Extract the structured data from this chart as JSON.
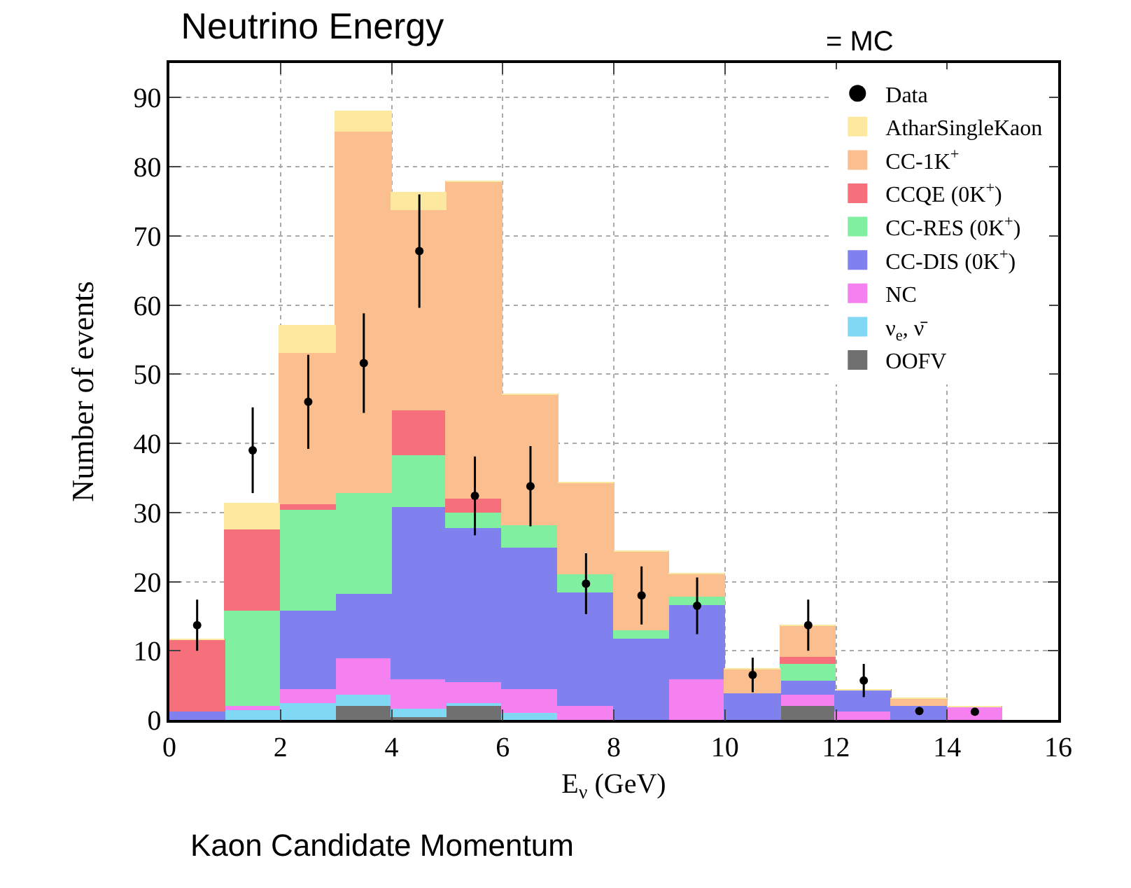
{
  "chart_data": {
    "type": "bar",
    "title": "Neutrino Energy",
    "xlabel": "E$_{ν}$ (GeV)",
    "ylabel": "Number of events",
    "x": [
      0.5,
      1.5,
      2.5,
      3.5,
      4.5,
      5.5,
      6.5,
      7.5,
      8.5,
      9.5,
      10.5,
      11.5,
      12.5,
      13.5,
      14.5
    ],
    "stacked": true,
    "xlim": [
      0,
      16
    ],
    "ylim": [
      0,
      95
    ],
    "xticks": [
      0,
      2,
      4,
      6,
      8,
      10,
      12,
      14,
      16
    ],
    "yticks": [
      0,
      10,
      20,
      30,
      40,
      50,
      60,
      70,
      80,
      90
    ],
    "grid": true,
    "legend": "top right",
    "marker": "circle",
    "annotations": [
      "= MC",
      "Kaon Candidate Momentum"
    ],
    "series": [
      {
        "name": "OOFV",
        "color": "#707070",
        "values": [
          0,
          0,
          0,
          2,
          0.5,
          2,
          0,
          0,
          0,
          0,
          0,
          2.1,
          0,
          0,
          0
        ]
      },
      {
        "name": "ν$_{e}$, ν̄",
        "color": "#80d8f5",
        "values": [
          0,
          1.5,
          2.5,
          1.6,
          1.1,
          0.5,
          1,
          0,
          0,
          0,
          0,
          0,
          0,
          0,
          0
        ]
      },
      {
        "name": "NC",
        "color": "#f580f0",
        "values": [
          0,
          0.5,
          1.9,
          5.3,
          4.2,
          3,
          3.5,
          2,
          0,
          5.8,
          0,
          1.5,
          1.3,
          0,
          1.9
        ]
      },
      {
        "name": "CC-DIS (0K$^{+}$)",
        "color": "#8080ee",
        "values": [
          1.3,
          0,
          11.3,
          9.4,
          24.9,
          22.3,
          20.4,
          16.4,
          11.7,
          10.9,
          3.9,
          2.1,
          2.9,
          2.1,
          0
        ]
      },
      {
        "name": "CC-RES (0K$^{+}$)",
        "color": "#80f0a0",
        "values": [
          0,
          13.9,
          14.7,
          14.6,
          7.5,
          2.1,
          3.3,
          2.6,
          1.3,
          1.1,
          0,
          2.4,
          0,
          0,
          0
        ]
      },
      {
        "name": "CCQE (0K$^{+}$)",
        "color": "#f5707a",
        "values": [
          10.2,
          11.7,
          0.8,
          0,
          6.5,
          2.1,
          0,
          0,
          0,
          0,
          0,
          1.1,
          0,
          0,
          0
        ]
      },
      {
        "name": "CC-1K$^{+}$",
        "color": "#fbbf8f",
        "values": [
          0,
          0,
          21.8,
          52.1,
          29.1,
          45.7,
          18.7,
          13.3,
          11.3,
          3.2,
          3.4,
          4.4,
          0,
          0.9,
          0
        ]
      },
      {
        "name": "AtharSingleKaon",
        "color": "#fde8a0",
        "values": [
          0,
          3.6,
          4,
          2.9,
          2.4,
          0,
          0,
          0,
          0,
          0,
          0,
          0,
          0,
          0,
          0
        ]
      },
      {
        "name": "Data",
        "type": "scatter",
        "color": "#000000",
        "x": [
          0.5,
          1.5,
          2.5,
          3.5,
          4.5,
          5.5,
          6.5,
          7.5,
          8.5,
          9.5,
          10.5,
          11.5,
          12.5,
          13.5,
          14.5
        ],
        "values": [
          13.7,
          39,
          46,
          51.6,
          67.8,
          32.4,
          33.8,
          19.7,
          18,
          16.5,
          6.5,
          13.7,
          5.7,
          1.3,
          1.2
        ],
        "errors": [
          3.7,
          6.2,
          6.8,
          7.2,
          8.2,
          5.7,
          5.8,
          4.4,
          4.2,
          4.1,
          2.5,
          3.7,
          2.4,
          null,
          null
        ]
      }
    ]
  }
}
